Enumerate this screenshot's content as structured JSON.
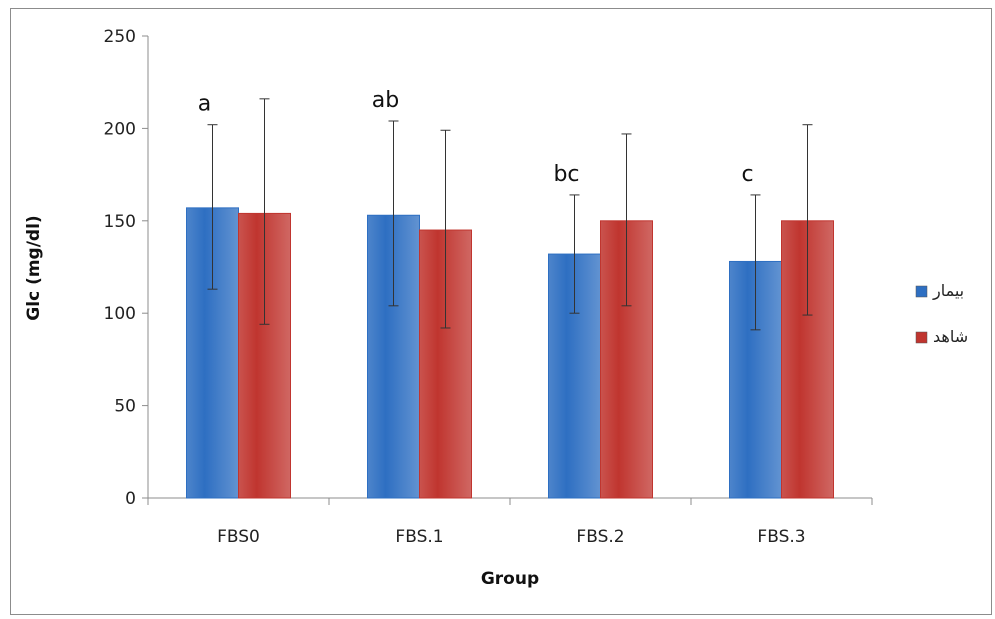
{
  "chart_data": {
    "type": "bar",
    "xlabel": "Group",
    "ylabel": "Glc (mg/dl)",
    "ylim": [
      0,
      250
    ],
    "yticks": [
      0,
      50,
      100,
      150,
      200,
      250
    ],
    "categories": [
      "FBS0",
      "FBS.1",
      "FBS.2",
      "FBS.3"
    ],
    "series": [
      {
        "name": "بیمار",
        "color": "#2e6fc2",
        "values": [
          157,
          153,
          132,
          128
        ],
        "error_low": [
          113,
          104,
          100,
          91
        ],
        "error_high": [
          202,
          204,
          164,
          164
        ]
      },
      {
        "name": "شاهد",
        "color": "#c0352f",
        "values": [
          154,
          145,
          150,
          150
        ],
        "error_low": [
          94,
          92,
          104,
          99
        ],
        "error_high": [
          216,
          199,
          197,
          202
        ]
      }
    ],
    "annotations": [
      "a",
      "ab",
      "bc",
      "c"
    ],
    "grid": false,
    "legend_position": "right"
  }
}
